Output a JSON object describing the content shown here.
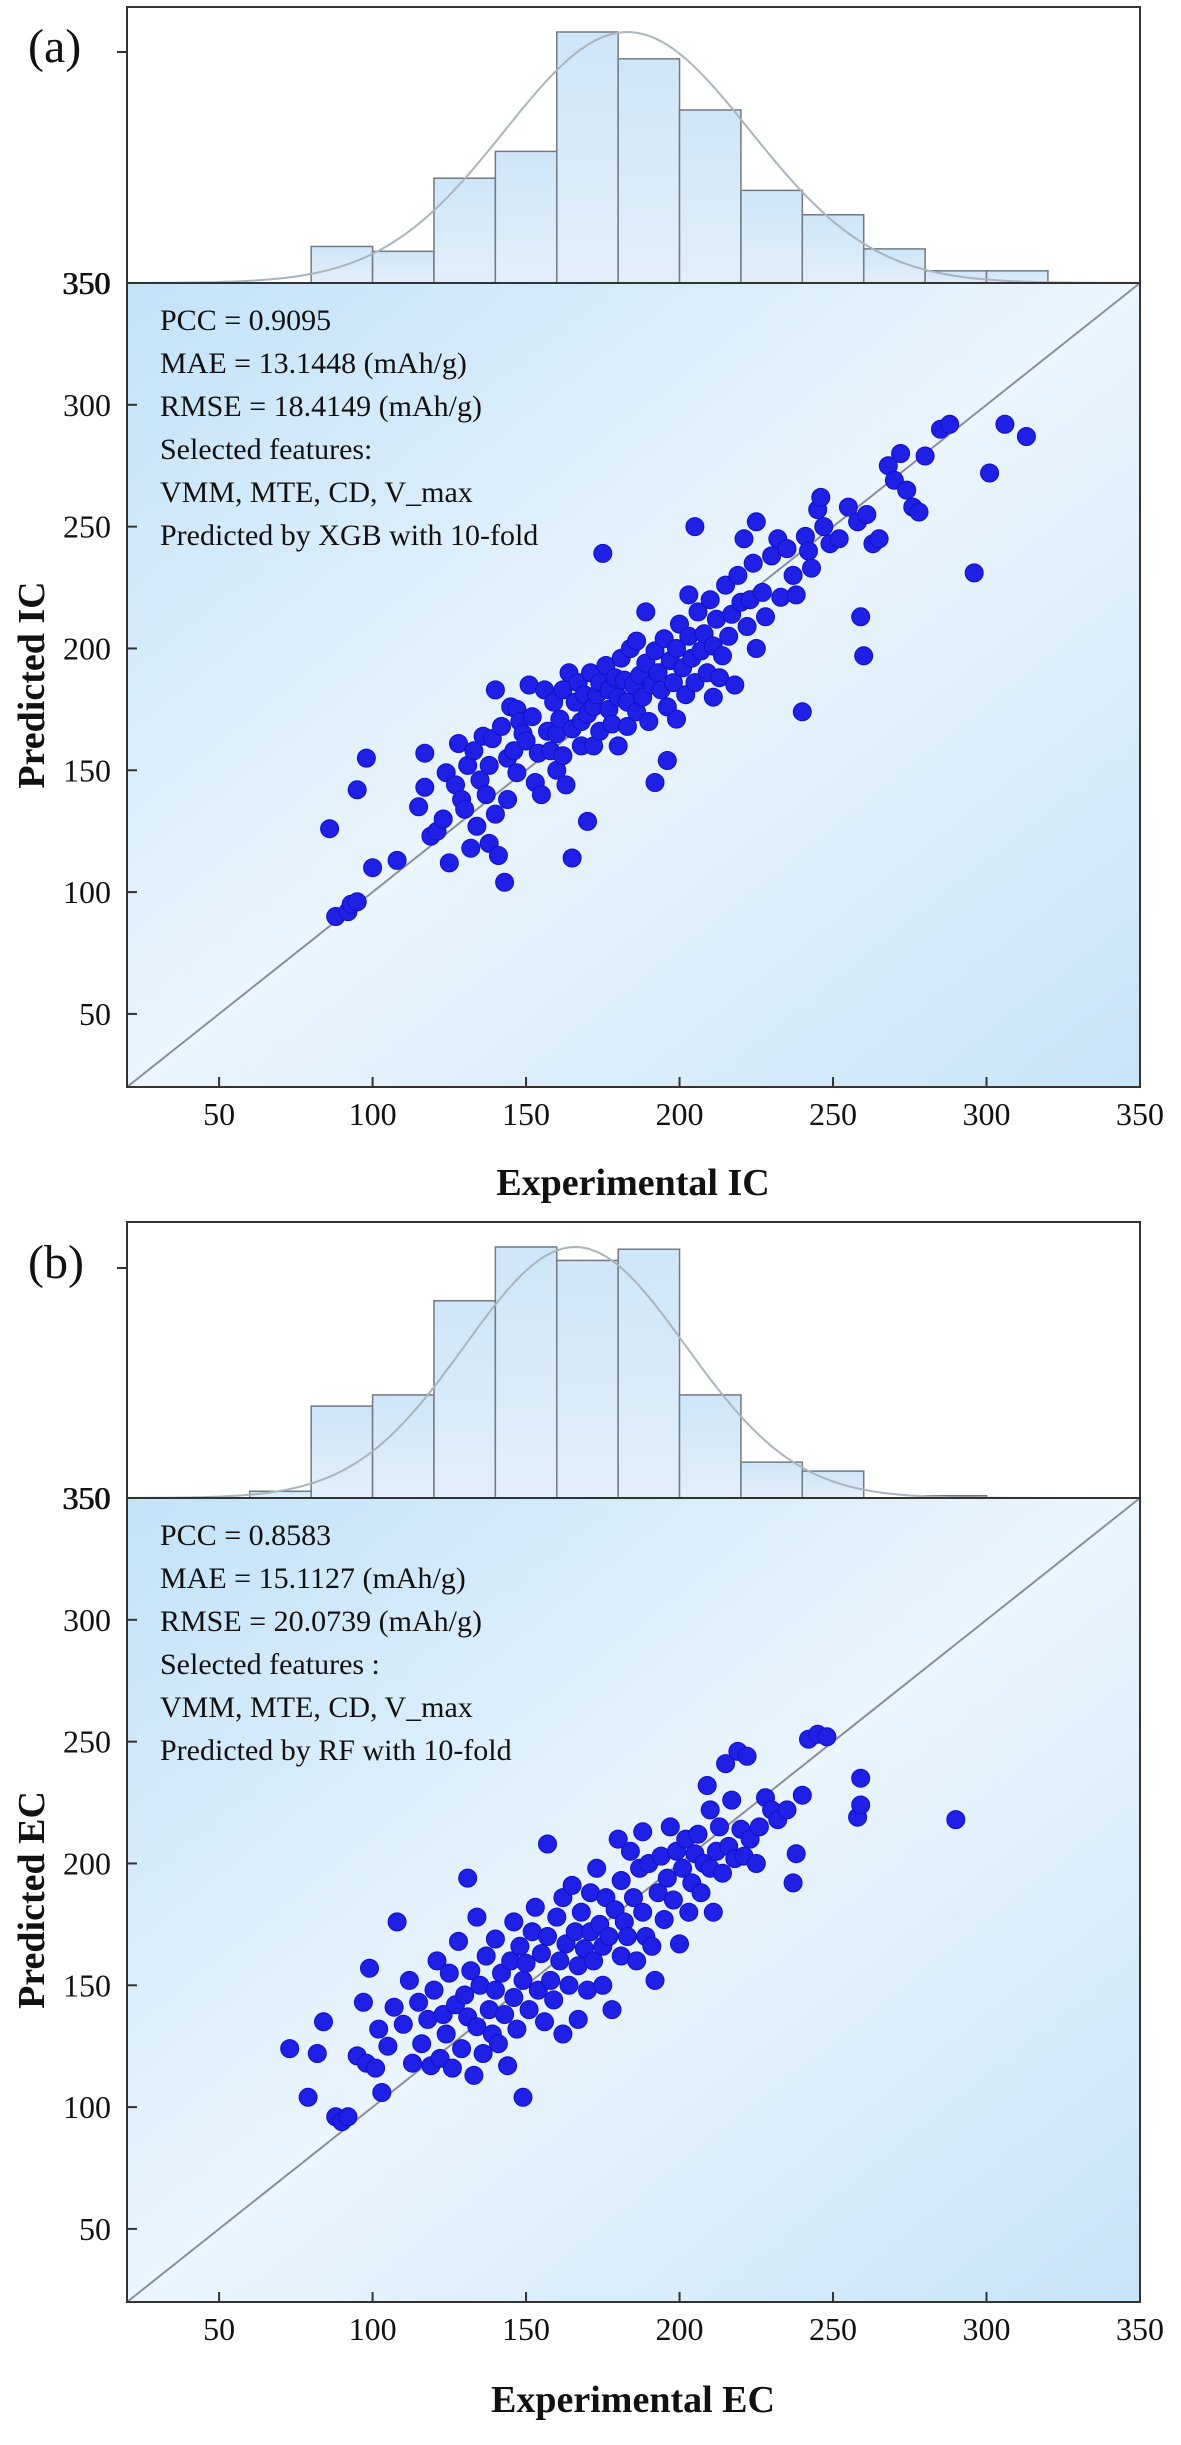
{
  "chart_data": [
    {
      "panel_label": "(a)",
      "type": "scatter",
      "xlabel": "Experimental IC",
      "ylabel": "Predicted IC",
      "xlim": [
        20,
        350
      ],
      "ylim": [
        20,
        350
      ],
      "x_ticks": [
        50,
        100,
        150,
        200,
        250,
        300,
        350
      ],
      "y_ticks": [
        50,
        100,
        150,
        200,
        250,
        300,
        350
      ],
      "hist_tick_label": "350",
      "annotations": [
        "PCC = 0.9095",
        "MAE = 13.1448 (mAh/g)",
        "RMSE = 18.4149 (mAh/g)",
        "Selected features:",
        "VMM, MTE, CD, V_max",
        "Predicted by XGB with 10-fold"
      ],
      "reference_line": "y = x",
      "histogram": {
        "bin_edges": [
          80,
          100,
          120,
          140,
          160,
          180,
          200,
          220,
          240,
          260,
          280,
          300,
          320
        ],
        "counts": [
          15,
          13,
          43,
          54,
          103,
          92,
          71,
          38,
          28,
          14,
          5,
          5
        ],
        "fit": {
          "type": "normal",
          "mean": 183,
          "sd": 40,
          "peak": 103
        }
      },
      "points": [
        [
          86,
          126
        ],
        [
          88,
          90
        ],
        [
          92,
          92
        ],
        [
          93,
          95
        ],
        [
          95,
          142
        ],
        [
          95,
          96
        ],
        [
          98,
          155
        ],
        [
          100,
          110
        ],
        [
          108,
          113
        ],
        [
          115,
          135
        ],
        [
          117,
          143
        ],
        [
          117,
          157
        ],
        [
          119,
          123
        ],
        [
          121,
          125
        ],
        [
          123,
          130
        ],
        [
          124,
          149
        ],
        [
          125,
          112
        ],
        [
          127,
          144
        ],
        [
          128,
          161
        ],
        [
          129,
          138
        ],
        [
          130,
          134
        ],
        [
          131,
          152
        ],
        [
          132,
          118
        ],
        [
          133,
          158
        ],
        [
          134,
          127
        ],
        [
          135,
          146
        ],
        [
          136,
          164
        ],
        [
          137,
          140
        ],
        [
          138,
          120
        ],
        [
          138,
          152
        ],
        [
          139,
          163
        ],
        [
          140,
          132
        ],
        [
          140,
          183
        ],
        [
          141,
          115
        ],
        [
          142,
          168
        ],
        [
          143,
          104
        ],
        [
          144,
          138
        ],
        [
          144,
          155
        ],
        [
          145,
          176
        ],
        [
          146,
          158
        ],
        [
          147,
          149
        ],
        [
          147,
          175
        ],
        [
          148,
          170
        ],
        [
          149,
          165
        ],
        [
          150,
          162
        ],
        [
          151,
          185
        ],
        [
          152,
          172
        ],
        [
          153,
          145
        ],
        [
          154,
          157
        ],
        [
          155,
          140
        ],
        [
          156,
          183
        ],
        [
          157,
          166
        ],
        [
          158,
          158
        ],
        [
          159,
          178
        ],
        [
          160,
          150
        ],
        [
          160,
          165
        ],
        [
          161,
          171
        ],
        [
          162,
          156
        ],
        [
          162,
          183
        ],
        [
          163,
          144
        ],
        [
          164,
          190
        ],
        [
          165,
          167
        ],
        [
          165,
          114
        ],
        [
          166,
          178
        ],
        [
          167,
          186
        ],
        [
          168,
          160
        ],
        [
          168,
          170
        ],
        [
          169,
          181
        ],
        [
          170,
          173
        ],
        [
          170,
          129
        ],
        [
          171,
          190
        ],
        [
          172,
          176
        ],
        [
          172,
          160
        ],
        [
          173,
          181
        ],
        [
          174,
          186
        ],
        [
          174,
          166
        ],
        [
          175,
          239
        ],
        [
          176,
          193
        ],
        [
          177,
          175
        ],
        [
          177,
          183
        ],
        [
          178,
          169
        ],
        [
          179,
          188
        ],
        [
          180,
          180
        ],
        [
          180,
          160
        ],
        [
          181,
          196
        ],
        [
          182,
          187
        ],
        [
          183,
          178
        ],
        [
          183,
          168
        ],
        [
          184,
          200
        ],
        [
          185,
          185
        ],
        [
          186,
          174
        ],
        [
          186,
          203
        ],
        [
          187,
          189
        ],
        [
          188,
          180
        ],
        [
          189,
          194
        ],
        [
          189,
          215
        ],
        [
          190,
          170
        ],
        [
          191,
          185
        ],
        [
          192,
          199
        ],
        [
          192,
          145
        ],
        [
          193,
          190
        ],
        [
          194,
          183
        ],
        [
          195,
          204
        ],
        [
          196,
          176
        ],
        [
          196,
          154
        ],
        [
          197,
          195
        ],
        [
          198,
          186
        ],
        [
          199,
          200
        ],
        [
          199,
          171
        ],
        [
          200,
          210
        ],
        [
          201,
          192
        ],
        [
          202,
          181
        ],
        [
          203,
          205
        ],
        [
          203,
          222
        ],
        [
          204,
          196
        ],
        [
          205,
          186
        ],
        [
          205,
          250
        ],
        [
          206,
          215
        ],
        [
          207,
          199
        ],
        [
          208,
          206
        ],
        [
          209,
          190
        ],
        [
          210,
          220
        ],
        [
          211,
          180
        ],
        [
          211,
          201
        ],
        [
          212,
          212
        ],
        [
          213,
          188
        ],
        [
          214,
          197
        ],
        [
          215,
          226
        ],
        [
          216,
          205
        ],
        [
          217,
          214
        ],
        [
          218,
          185
        ],
        [
          219,
          230
        ],
        [
          220,
          219
        ],
        [
          221,
          245
        ],
        [
          222,
          209
        ],
        [
          223,
          220
        ],
        [
          224,
          235
        ],
        [
          225,
          200
        ],
        [
          225,
          252
        ],
        [
          227,
          223
        ],
        [
          228,
          213
        ],
        [
          230,
          238
        ],
        [
          232,
          245
        ],
        [
          233,
          221
        ],
        [
          235,
          241
        ],
        [
          237,
          230
        ],
        [
          238,
          222
        ],
        [
          240,
          174
        ],
        [
          241,
          246
        ],
        [
          242,
          240
        ],
        [
          243,
          233
        ],
        [
          245,
          257
        ],
        [
          246,
          262
        ],
        [
          247,
          250
        ],
        [
          249,
          243
        ],
        [
          252,
          245
        ],
        [
          255,
          258
        ],
        [
          258,
          252
        ],
        [
          259,
          213
        ],
        [
          260,
          197
        ],
        [
          261,
          255
        ],
        [
          263,
          243
        ],
        [
          265,
          245
        ],
        [
          268,
          275
        ],
        [
          270,
          269
        ],
        [
          272,
          280
        ],
        [
          274,
          265
        ],
        [
          276,
          258
        ],
        [
          278,
          256
        ],
        [
          280,
          279
        ],
        [
          285,
          290
        ],
        [
          288,
          292
        ],
        [
          296,
          231
        ],
        [
          301,
          272
        ],
        [
          306,
          292
        ],
        [
          313,
          287
        ]
      ]
    },
    {
      "panel_label": "(b)",
      "type": "scatter",
      "xlabel": "Experimental EC",
      "ylabel": "Predicted EC",
      "xlim": [
        20,
        350
      ],
      "ylim": [
        20,
        350
      ],
      "x_ticks": [
        50,
        100,
        150,
        200,
        250,
        300,
        350
      ],
      "y_ticks": [
        50,
        100,
        150,
        200,
        250,
        300,
        350
      ],
      "hist_tick_label": "350",
      "annotations": [
        "PCC = 0.8583",
        "MAE = 15.1127 (mAh/g)",
        "RMSE = 20.0739 (mAh/g)",
        "Selected features :",
        "VMM, MTE, CD, V_max",
        "Predicted by RF with 10-fold"
      ],
      "reference_line": "y = x",
      "histogram": {
        "bin_edges": [
          60,
          80,
          100,
          120,
          140,
          160,
          180,
          200,
          220,
          240,
          260,
          280,
          300
        ],
        "counts": [
          3,
          41,
          46,
          88,
          112,
          106,
          111,
          46,
          16,
          12,
          0,
          1
        ],
        "fit": {
          "type": "normal",
          "mean": 166,
          "sd": 36,
          "peak": 112
        }
      },
      "points": [
        [
          73,
          124
        ],
        [
          79,
          104
        ],
        [
          82,
          122
        ],
        [
          84,
          135
        ],
        [
          88,
          96
        ],
        [
          90,
          94
        ],
        [
          92,
          96
        ],
        [
          95,
          121
        ],
        [
          97,
          143
        ],
        [
          98,
          118
        ],
        [
          99,
          157
        ],
        [
          101,
          116
        ],
        [
          102,
          132
        ],
        [
          103,
          106
        ],
        [
          105,
          125
        ],
        [
          107,
          141
        ],
        [
          108,
          176
        ],
        [
          110,
          134
        ],
        [
          112,
          152
        ],
        [
          113,
          118
        ],
        [
          115,
          143
        ],
        [
          116,
          126
        ],
        [
          118,
          136
        ],
        [
          119,
          117
        ],
        [
          120,
          148
        ],
        [
          121,
          160
        ],
        [
          122,
          120
        ],
        [
          123,
          138
        ],
        [
          124,
          130
        ],
        [
          125,
          155
        ],
        [
          126,
          116
        ],
        [
          127,
          142
        ],
        [
          128,
          168
        ],
        [
          129,
          124
        ],
        [
          130,
          146
        ],
        [
          131,
          137
        ],
        [
          131,
          194
        ],
        [
          132,
          156
        ],
        [
          133,
          113
        ],
        [
          134,
          178
        ],
        [
          134,
          133
        ],
        [
          135,
          150
        ],
        [
          136,
          122
        ],
        [
          137,
          162
        ],
        [
          138,
          140
        ],
        [
          139,
          130
        ],
        [
          140,
          169
        ],
        [
          140,
          148
        ],
        [
          141,
          126
        ],
        [
          142,
          155
        ],
        [
          143,
          138
        ],
        [
          144,
          117
        ],
        [
          145,
          160
        ],
        [
          146,
          176
        ],
        [
          146,
          145
        ],
        [
          147,
          132
        ],
        [
          148,
          166
        ],
        [
          149,
          104
        ],
        [
          149,
          152
        ],
        [
          150,
          159
        ],
        [
          151,
          140
        ],
        [
          152,
          172
        ],
        [
          153,
          182
        ],
        [
          154,
          148
        ],
        [
          155,
          163
        ],
        [
          156,
          135
        ],
        [
          157,
          208
        ],
        [
          157,
          170
        ],
        [
          158,
          152
        ],
        [
          159,
          144
        ],
        [
          160,
          178
        ],
        [
          161,
          160
        ],
        [
          162,
          130
        ],
        [
          162,
          186
        ],
        [
          163,
          167
        ],
        [
          164,
          150
        ],
        [
          165,
          191
        ],
        [
          166,
          172
        ],
        [
          167,
          158
        ],
        [
          167,
          136
        ],
        [
          168,
          180
        ],
        [
          169,
          165
        ],
        [
          170,
          148
        ],
        [
          171,
          188
        ],
        [
          171,
          172
        ],
        [
          172,
          160
        ],
        [
          173,
          198
        ],
        [
          174,
          175
        ],
        [
          175,
          150
        ],
        [
          175,
          166
        ],
        [
          176,
          186
        ],
        [
          177,
          170
        ],
        [
          178,
          140
        ],
        [
          179,
          181
        ],
        [
          180,
          210
        ],
        [
          181,
          162
        ],
        [
          181,
          193
        ],
        [
          182,
          176
        ],
        [
          183,
          170
        ],
        [
          184,
          205
        ],
        [
          185,
          186
        ],
        [
          186,
          160
        ],
        [
          187,
          198
        ],
        [
          188,
          180
        ],
        [
          188,
          213
        ],
        [
          189,
          170
        ],
        [
          190,
          200
        ],
        [
          191,
          166
        ],
        [
          192,
          152
        ],
        [
          193,
          188
        ],
        [
          194,
          203
        ],
        [
          195,
          177
        ],
        [
          196,
          194
        ],
        [
          197,
          215
        ],
        [
          198,
          185
        ],
        [
          199,
          205
        ],
        [
          200,
          167
        ],
        [
          201,
          198
        ],
        [
          202,
          210
        ],
        [
          203,
          180
        ],
        [
          204,
          192
        ],
        [
          205,
          204
        ],
        [
          206,
          212
        ],
        [
          207,
          188
        ],
        [
          208,
          200
        ],
        [
          209,
          232
        ],
        [
          210,
          222
        ],
        [
          210,
          198
        ],
        [
          211,
          180
        ],
        [
          212,
          205
        ],
        [
          213,
          215
        ],
        [
          214,
          196
        ],
        [
          215,
          241
        ],
        [
          216,
          207
        ],
        [
          217,
          226
        ],
        [
          218,
          202
        ],
        [
          219,
          246
        ],
        [
          220,
          214
        ],
        [
          221,
          203
        ],
        [
          222,
          244
        ],
        [
          223,
          210
        ],
        [
          225,
          200
        ],
        [
          226,
          215
        ],
        [
          228,
          227
        ],
        [
          230,
          222
        ],
        [
          232,
          218
        ],
        [
          235,
          222
        ],
        [
          237,
          192
        ],
        [
          238,
          204
        ],
        [
          240,
          228
        ],
        [
          242,
          251
        ],
        [
          245,
          253
        ],
        [
          248,
          252
        ],
        [
          258,
          219
        ],
        [
          259,
          224
        ],
        [
          259,
          235
        ],
        [
          290,
          218
        ]
      ]
    }
  ]
}
